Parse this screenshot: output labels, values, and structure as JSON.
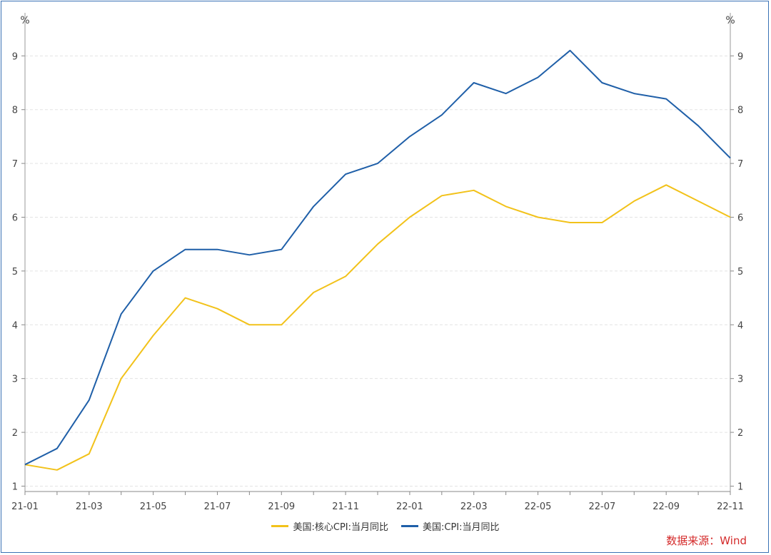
{
  "chart_data": {
    "type": "line",
    "left_axis_unit": "%",
    "right_axis_unit": "%",
    "x": [
      "21-01",
      "21-02",
      "21-03",
      "21-04",
      "21-05",
      "21-06",
      "21-07",
      "21-08",
      "21-09",
      "21-10",
      "21-11",
      "21-12",
      "22-01",
      "22-02",
      "22-03",
      "22-04",
      "22-05",
      "22-06",
      "22-07",
      "22-08",
      "22-09",
      "22-10",
      "22-11"
    ],
    "x_tick_labels": [
      "21-01",
      "21-03",
      "21-05",
      "21-07",
      "21-09",
      "21-11",
      "22-01",
      "22-03",
      "22-05",
      "22-07",
      "22-09",
      "22-11"
    ],
    "y_ticks": [
      "1",
      "2",
      "3",
      "4",
      "5",
      "6",
      "7",
      "8",
      "9"
    ],
    "ylim": [
      0.9,
      9.8
    ],
    "grid": "horizontal dashed",
    "legend_placement": "bottom-center",
    "series": [
      {
        "name": "美国:核心CPI:当月同比",
        "color": "#f2c21a",
        "values": [
          1.4,
          1.3,
          1.6,
          3.0,
          3.8,
          4.5,
          4.3,
          4.0,
          4.0,
          4.6,
          4.9,
          5.5,
          6.0,
          6.4,
          6.5,
          6.2,
          6.0,
          5.9,
          5.9,
          6.3,
          6.6,
          6.3,
          6.0
        ]
      },
      {
        "name": "美国:CPI:当月同比",
        "color": "#1f5fa8",
        "values": [
          1.4,
          1.7,
          2.6,
          4.2,
          5.0,
          5.4,
          5.4,
          5.3,
          5.4,
          6.2,
          6.8,
          7.0,
          7.5,
          7.9,
          8.5,
          8.3,
          8.6,
          9.1,
          8.5,
          8.3,
          8.2,
          7.7,
          7.1
        ]
      }
    ],
    "source": "数据来源：Wind"
  }
}
